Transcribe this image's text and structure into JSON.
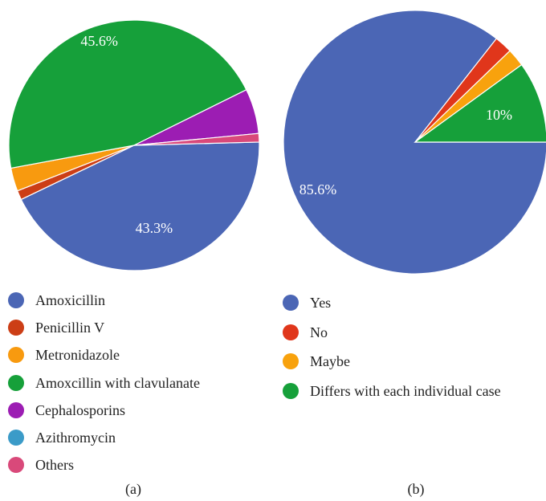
{
  "chart_data": [
    {
      "type": "pie",
      "caption": "(a)",
      "slices": [
        {
          "label": "Amoxicillin",
          "value": 43.3,
          "color": "#4b66b5",
          "data_label": "43.3%"
        },
        {
          "label": "Penicillin V",
          "value": 1.2,
          "color": "#cc3e16",
          "data_label": ""
        },
        {
          "label": "Metronidazole",
          "value": 3.0,
          "color": "#f89a0f",
          "data_label": ""
        },
        {
          "label": "Amoxcillin with clavulanate",
          "value": 45.6,
          "color": "#16a03a",
          "data_label": "45.6%"
        },
        {
          "label": "Cephalosporins",
          "value": 5.8,
          "color": "#9c1db3",
          "data_label": ""
        },
        {
          "label": "Azithromycin",
          "value": 0.0,
          "color": "#3b9bc8",
          "data_label": ""
        },
        {
          "label": "Others",
          "value": 1.1,
          "color": "#d9497a",
          "data_label": ""
        }
      ]
    },
    {
      "type": "pie",
      "caption": "(b)",
      "slices": [
        {
          "label": "Yes",
          "value": 85.6,
          "color": "#4b66b5",
          "data_label": "85.6%"
        },
        {
          "label": "No",
          "value": 2.2,
          "color": "#e0361b",
          "data_label": ""
        },
        {
          "label": "Maybe",
          "value": 2.2,
          "color": "#f8a20d",
          "data_label": ""
        },
        {
          "label": "Differs with each individual case",
          "value": 10.0,
          "color": "#16a03a",
          "data_label": "10%"
        }
      ]
    }
  ],
  "legend_a": [
    {
      "label": "Amoxicillin",
      "color": "#4b66b5"
    },
    {
      "label": "Penicillin V",
      "color": "#cc3e16"
    },
    {
      "label": "Metronidazole",
      "color": "#f89a0f"
    },
    {
      "label": "Amoxcillin with clavulanate",
      "color": "#16a03a"
    },
    {
      "label": "Cephalosporins",
      "color": "#9c1db3"
    },
    {
      "label": "Azithromycin",
      "color": "#3b9bc8"
    },
    {
      "label": "Others",
      "color": "#d9497a"
    }
  ],
  "legend_b": [
    {
      "label": "Yes",
      "color": "#4b66b5"
    },
    {
      "label": "No",
      "color": "#e0361b"
    },
    {
      "label": "Maybe",
      "color": "#f8a20d"
    },
    {
      "label": "Differs with each individual case",
      "color": "#16a03a"
    }
  ],
  "captions": {
    "a": "(a)",
    "b": "(b)"
  }
}
